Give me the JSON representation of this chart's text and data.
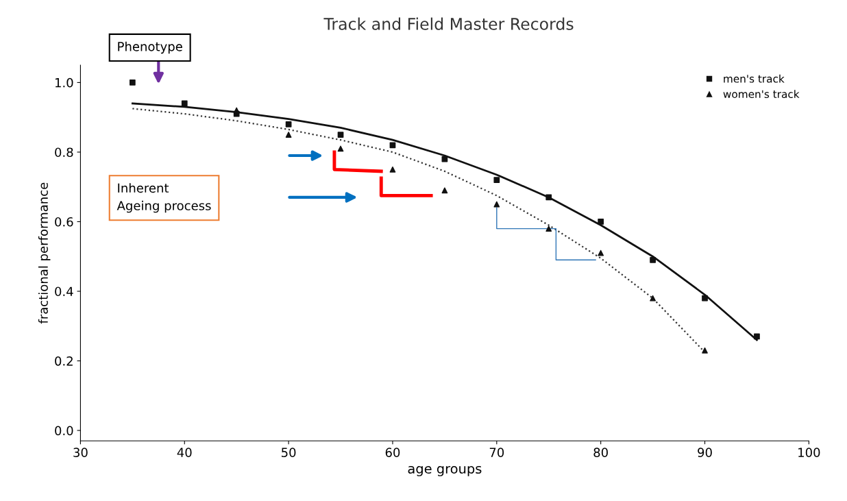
{
  "chart_data": {
    "type": "scatter",
    "title": "Track and Field Master Records",
    "xlabel": "age groups",
    "ylabel": "fractional performance",
    "xlim": [
      30,
      100
    ],
    "xticks": [
      30,
      40,
      50,
      60,
      70,
      80,
      90,
      100
    ],
    "ylim": [
      -0.03,
      1.05
    ],
    "yticks": [
      {
        "value": 0,
        "label": "0.0"
      },
      0.2,
      0.4,
      0.6,
      0.8,
      {
        "value": 1,
        "label": "1.0"
      }
    ],
    "grid": false,
    "legend": "top right",
    "series": [
      {
        "name": "men's track",
        "marker": "square",
        "color": "#111111",
        "x": [
          35,
          40,
          45,
          50,
          55,
          60,
          65,
          70,
          75,
          80,
          85,
          90,
          95
        ],
        "values": [
          1.0,
          0.94,
          0.91,
          0.88,
          0.85,
          0.82,
          0.78,
          0.72,
          0.67,
          0.6,
          0.49,
          0.38,
          0.27
        ]
      },
      {
        "name": "women's track",
        "marker": "triangle",
        "color": "#111111",
        "x": [
          45,
          50,
          55,
          60,
          65,
          70,
          75,
          80,
          85,
          90
        ],
        "values": [
          0.92,
          0.85,
          0.81,
          0.75,
          0.69,
          0.65,
          0.58,
          0.51,
          0.38,
          0.23
        ]
      },
      {
        "type": "line",
        "line_style": "solid",
        "color": "#111111",
        "x": [
          35,
          40,
          45,
          50,
          55,
          60,
          65,
          70,
          75,
          80,
          85,
          90,
          95
        ],
        "values": [
          0.94,
          0.93,
          0.915,
          0.895,
          0.87,
          0.835,
          0.79,
          0.735,
          0.67,
          0.59,
          0.5,
          0.39,
          0.26
        ]
      },
      {
        "type": "line",
        "line_style": "dotted",
        "color": "#333333",
        "x": [
          35,
          40,
          45,
          50,
          55,
          60,
          65,
          70,
          75,
          80,
          85,
          90
        ],
        "values": [
          0.925,
          0.91,
          0.89,
          0.865,
          0.835,
          0.8,
          0.745,
          0.675,
          0.59,
          0.495,
          0.38,
          0.225
        ]
      }
    ],
    "annotations": [
      "Phenotype",
      "Inherent\nAgeing process"
    ]
  }
}
